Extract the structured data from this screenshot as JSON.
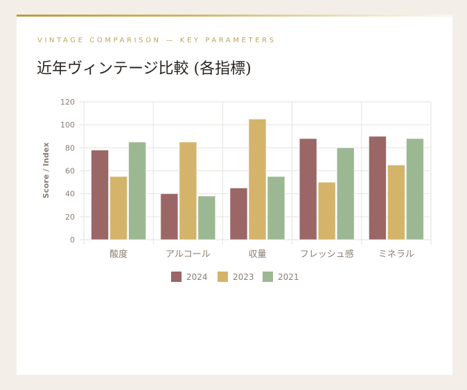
{
  "header": {
    "eyebrow": "VINTAGE COMPARISON — KEY PARAMETERS",
    "title": "近年ヴィンテージ比較 (各指標)"
  },
  "colors": {
    "background": "#f3efe8",
    "card": "#ffffff",
    "accent_gold": "#c4a158",
    "grid": "#e6e2dd",
    "axis_text": "#8a7d70"
  },
  "chart_data": {
    "type": "bar",
    "title": "近年ヴィンテージ比較 (各指標)",
    "subtitle": "VINTAGE COMPARISON — KEY PARAMETERS",
    "xlabel": "",
    "ylabel": "Score / Index",
    "ylim": [
      0,
      120
    ],
    "yticks": [
      0,
      20,
      40,
      60,
      80,
      100,
      120
    ],
    "grid": true,
    "legend_position": "bottom",
    "categories": [
      "酸度",
      "アルコール",
      "収量",
      "フレッシュ感",
      "ミネラル"
    ],
    "series": [
      {
        "name": "2024",
        "color": "#9a6666",
        "values": [
          78,
          40,
          45,
          88,
          90
        ]
      },
      {
        "name": "2023",
        "color": "#d3b46a",
        "values": [
          55,
          85,
          105,
          50,
          65
        ]
      },
      {
        "name": "2021",
        "color": "#9bb893",
        "values": [
          85,
          38,
          55,
          80,
          88
        ]
      }
    ]
  }
}
